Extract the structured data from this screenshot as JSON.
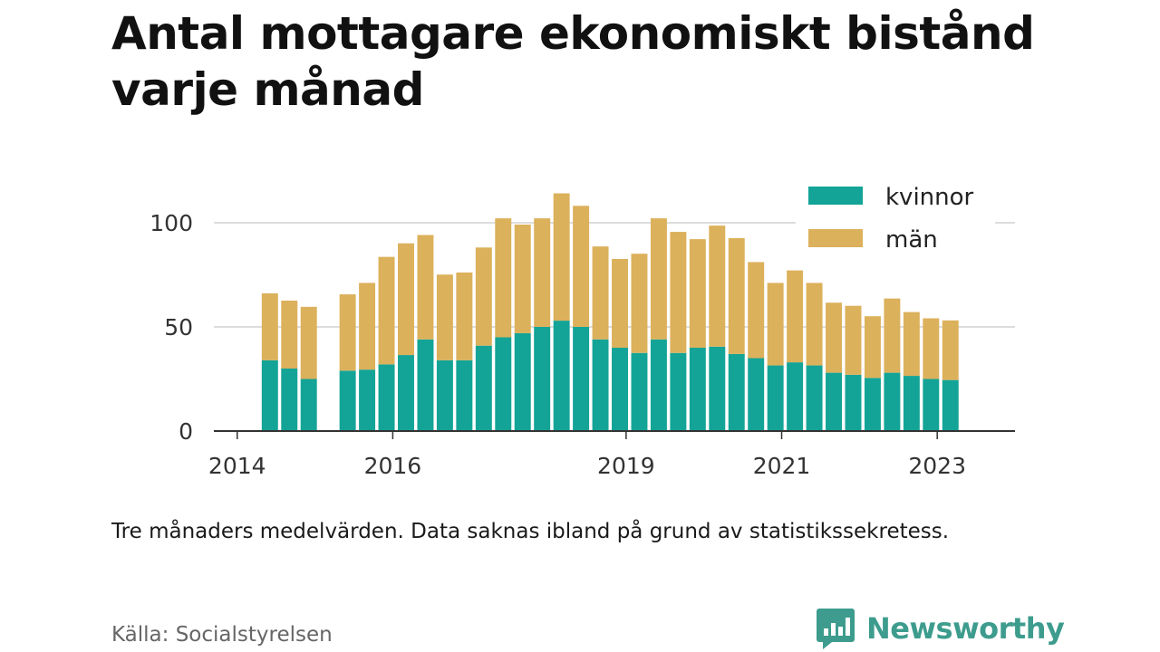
{
  "title": "Antal mottagare ekonomiskt bistånd varje månad",
  "note": "Tre månaders medelvärden. Data saknas ibland på grund av statistikssekretess.",
  "source": "Källa: Socialstyrelsen",
  "brand": {
    "name": "Newsworthy",
    "icon": "newsworthy-logo-icon",
    "color": "#3d9c8d"
  },
  "chart_data": {
    "type": "bar",
    "stacked": true,
    "x": [
      2014.42,
      2014.67,
      2014.92,
      2015.42,
      2015.67,
      2015.92,
      2016.17,
      2016.42,
      2016.67,
      2016.92,
      2017.17,
      2017.42,
      2017.67,
      2017.92,
      2018.17,
      2018.42,
      2018.67,
      2018.92,
      2019.17,
      2019.42,
      2019.67,
      2019.92,
      2020.17,
      2020.42,
      2020.67,
      2020.92,
      2021.17,
      2021.42,
      2021.67,
      2021.92,
      2022.17,
      2022.42,
      2022.67,
      2022.92,
      2023.17
    ],
    "series": [
      {
        "name": "kvinnor",
        "color": "#13a497",
        "values": [
          34,
          30,
          25,
          29,
          29.5,
          32,
          36.5,
          44,
          34,
          34,
          41,
          45,
          47,
          50,
          53,
          50,
          44,
          40,
          37.5,
          44,
          37.5,
          40,
          40.5,
          37,
          35,
          31.5,
          33,
          31.5,
          28,
          27,
          25.5,
          28,
          26.5,
          25,
          24.5
        ]
      },
      {
        "name": "män",
        "color": "#dcb15c",
        "values": [
          33,
          33.5,
          35.5,
          37.5,
          42.5,
          52.5,
          54.5,
          51,
          42,
          43,
          48,
          58,
          53,
          53,
          62,
          59,
          45.5,
          43.5,
          48.5,
          59,
          59,
          53,
          59,
          56.5,
          47,
          40.5,
          45,
          40.5,
          34.5,
          34,
          30.5,
          36.5,
          31.5,
          30,
          29.5
        ]
      }
    ],
    "xlim": [
      2013.7,
      2024.0
    ],
    "ylim": [
      0,
      120
    ],
    "xticks": [
      2014,
      2016,
      2019,
      2021,
      2023
    ],
    "yticks": [
      0,
      50,
      100
    ],
    "grid": true,
    "legend": "top-right"
  }
}
